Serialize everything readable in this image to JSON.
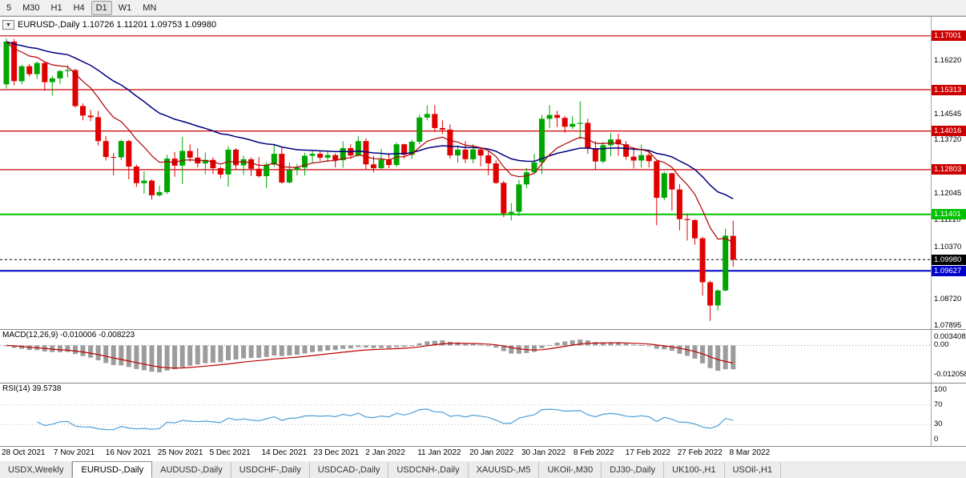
{
  "toolbar": {
    "timeframes": [
      "5",
      "M30",
      "H1",
      "H4",
      "D1",
      "W1",
      "MN"
    ],
    "active_timeframe": "D1"
  },
  "chart": {
    "title_text": "EURUSD-,Daily  1.10726 1.11201 1.09753 1.09980"
  },
  "chart_data": {
    "type": "candlestick",
    "symbol": "EURUSD-",
    "period": "Daily",
    "current_bar": {
      "open": 1.10726,
      "high": 1.11201,
      "low": 1.09753,
      "close": 1.0998
    },
    "up_color": "#00a500",
    "down_color": "#e00000",
    "y_axis": {
      "min": 1.078,
      "max": 1.176,
      "ticks": [
        "1.16220",
        "1.14545",
        "1.13720",
        "1.12045",
        "1.11220",
        "1.10370",
        "1.08720",
        "1.07895"
      ]
    },
    "hlines": [
      {
        "value": 1.17001,
        "label": "1.17001",
        "color": "#cc0000",
        "width": 1.2
      },
      {
        "value": 1.15313,
        "label": "1.15313",
        "color": "#cc0000",
        "width": 1.2
      },
      {
        "value": 1.14016,
        "label": "1.14016",
        "color": "#cc0000",
        "width": 1.2
      },
      {
        "value": 1.12803,
        "label": "1.12803",
        "color": "#cc0000",
        "width": 1.2
      },
      {
        "value": 1.11401,
        "label": "1.11401",
        "color": "#00c000",
        "width": 2
      },
      {
        "value": 1.09627,
        "label": "1.09627",
        "color": "#0000c8",
        "width": 2
      }
    ],
    "price_line": {
      "value": 1.0998,
      "label": "1.09980",
      "color": "#000000"
    },
    "moving_averages": [
      {
        "name": "ma-slow",
        "period": 30,
        "color": "#000080",
        "width": 1.5
      },
      {
        "name": "ma-fast",
        "period": 10,
        "color": "#b00000",
        "width": 1.2
      }
    ],
    "candles": [
      [
        1.1548,
        1.1692,
        1.1535,
        1.1682
      ],
      [
        1.1682,
        1.169,
        1.1545,
        1.1558
      ],
      [
        1.1558,
        1.1609,
        1.1548,
        1.1605
      ],
      [
        1.1605,
        1.1612,
        1.1573,
        1.158
      ],
      [
        1.158,
        1.162,
        1.1565,
        1.1615
      ],
      [
        1.1615,
        1.1618,
        1.1528,
        1.1555
      ],
      [
        1.1555,
        1.1575,
        1.1513,
        1.1567
      ],
      [
        1.1567,
        1.1593,
        1.155,
        1.159
      ],
      [
        1.159,
        1.1608,
        1.157,
        1.1593
      ],
      [
        1.1593,
        1.1597,
        1.1475,
        1.148
      ],
      [
        1.148,
        1.1488,
        1.1435,
        1.145
      ],
      [
        1.145,
        1.1468,
        1.1432,
        1.1445
      ],
      [
        1.1445,
        1.1464,
        1.1356,
        1.137
      ],
      [
        1.137,
        1.1386,
        1.1309,
        1.132
      ],
      [
        1.132,
        1.1332,
        1.1263,
        1.1319
      ],
      [
        1.1319,
        1.1374,
        1.131,
        1.137
      ],
      [
        1.137,
        1.1374,
        1.125,
        1.129
      ],
      [
        1.129,
        1.1296,
        1.1226,
        1.1238
      ],
      [
        1.1238,
        1.1275,
        1.1205,
        1.1246
      ],
      [
        1.1246,
        1.125,
        1.1186,
        1.12
      ],
      [
        1.12,
        1.123,
        1.1196,
        1.121
      ],
      [
        1.121,
        1.1327,
        1.1204,
        1.1315
      ],
      [
        1.1315,
        1.1336,
        1.1258,
        1.1293
      ],
      [
        1.1293,
        1.1383,
        1.1235,
        1.1339
      ],
      [
        1.1339,
        1.136,
        1.1305,
        1.1318
      ],
      [
        1.1318,
        1.1348,
        1.1287,
        1.13
      ],
      [
        1.13,
        1.1334,
        1.1266,
        1.1311
      ],
      [
        1.1311,
        1.1319,
        1.1267,
        1.1285
      ],
      [
        1.1285,
        1.129,
        1.1253,
        1.1265
      ],
      [
        1.1265,
        1.1354,
        1.1227,
        1.1343
      ],
      [
        1.1343,
        1.1348,
        1.128,
        1.1294
      ],
      [
        1.1294,
        1.1324,
        1.1264,
        1.1313
      ],
      [
        1.1313,
        1.1319,
        1.126,
        1.1283
      ],
      [
        1.1283,
        1.132,
        1.1255,
        1.126
      ],
      [
        1.126,
        1.1303,
        1.1222,
        1.1296
      ],
      [
        1.1296,
        1.136,
        1.129,
        1.133
      ],
      [
        1.133,
        1.135,
        1.1236,
        1.124
      ],
      [
        1.124,
        1.1303,
        1.1237,
        1.128
      ],
      [
        1.128,
        1.1298,
        1.1262,
        1.1287
      ],
      [
        1.1287,
        1.1333,
        1.1262,
        1.1324
      ],
      [
        1.1324,
        1.1342,
        1.1301,
        1.133
      ],
      [
        1.133,
        1.1338,
        1.1308,
        1.1318
      ],
      [
        1.1318,
        1.1336,
        1.1304,
        1.1326
      ],
      [
        1.1326,
        1.1331,
        1.1287,
        1.131
      ],
      [
        1.131,
        1.1369,
        1.1286,
        1.1348
      ],
      [
        1.1348,
        1.136,
        1.1316,
        1.1325
      ],
      [
        1.1325,
        1.1386,
        1.1321,
        1.137
      ],
      [
        1.137,
        1.1379,
        1.1279,
        1.1297
      ],
      [
        1.1297,
        1.1324,
        1.1272,
        1.1285
      ],
      [
        1.1285,
        1.1346,
        1.128,
        1.1312
      ],
      [
        1.1312,
        1.1332,
        1.1285,
        1.1295
      ],
      [
        1.1295,
        1.1366,
        1.1289,
        1.136
      ],
      [
        1.136,
        1.1362,
        1.1315,
        1.1327
      ],
      [
        1.1327,
        1.1374,
        1.1314,
        1.1368
      ],
      [
        1.1368,
        1.1453,
        1.136,
        1.1444
      ],
      [
        1.1444,
        1.1482,
        1.1435,
        1.1455
      ],
      [
        1.1455,
        1.1483,
        1.1398,
        1.1411
      ],
      [
        1.1411,
        1.1435,
        1.1392,
        1.1406
      ],
      [
        1.1406,
        1.1422,
        1.1315,
        1.1325
      ],
      [
        1.1325,
        1.1357,
        1.1302,
        1.1343
      ],
      [
        1.1343,
        1.137,
        1.1301,
        1.1313
      ],
      [
        1.1313,
        1.136,
        1.13,
        1.1344
      ],
      [
        1.1344,
        1.1349,
        1.1291,
        1.1325
      ],
      [
        1.1325,
        1.134,
        1.1263,
        1.13
      ],
      [
        1.13,
        1.131,
        1.1235,
        1.1239
      ],
      [
        1.1239,
        1.1245,
        1.1131,
        1.1143
      ],
      [
        1.1143,
        1.1175,
        1.1121,
        1.1148
      ],
      [
        1.1148,
        1.1248,
        1.1135,
        1.1234
      ],
      [
        1.1234,
        1.1285,
        1.1222,
        1.1272
      ],
      [
        1.1272,
        1.133,
        1.1266,
        1.1303
      ],
      [
        1.1303,
        1.1452,
        1.1267,
        1.144
      ],
      [
        1.144,
        1.1483,
        1.1411,
        1.1452
      ],
      [
        1.1452,
        1.1465,
        1.1414,
        1.1443
      ],
      [
        1.1443,
        1.1449,
        1.1396,
        1.1415
      ],
      [
        1.1415,
        1.1448,
        1.1408,
        1.1424
      ],
      [
        1.1424,
        1.1495,
        1.1375,
        1.1427
      ],
      [
        1.1427,
        1.144,
        1.133,
        1.1348
      ],
      [
        1.1348,
        1.1369,
        1.1279,
        1.1306
      ],
      [
        1.1306,
        1.1368,
        1.13,
        1.1357
      ],
      [
        1.1357,
        1.1395,
        1.1322,
        1.1375
      ],
      [
        1.1375,
        1.1393,
        1.1324,
        1.136
      ],
      [
        1.136,
        1.137,
        1.1312,
        1.1321
      ],
      [
        1.1321,
        1.1351,
        1.1284,
        1.1309
      ],
      [
        1.1309,
        1.1359,
        1.1286,
        1.1326
      ],
      [
        1.1326,
        1.1342,
        1.1287,
        1.1307
      ],
      [
        1.1307,
        1.131,
        1.1106,
        1.1192
      ],
      [
        1.1192,
        1.1274,
        1.1184,
        1.1269
      ],
      [
        1.1269,
        1.127,
        1.1152,
        1.1218
      ],
      [
        1.1218,
        1.1235,
        1.109,
        1.1125
      ],
      [
        1.1125,
        1.1142,
        1.1058,
        1.1122
      ],
      [
        1.1122,
        1.1125,
        1.1045,
        1.1065
      ],
      [
        1.1065,
        1.107,
        1.0885,
        1.0927
      ],
      [
        1.0927,
        1.0932,
        1.0806,
        1.0854
      ],
      [
        1.0854,
        1.0905,
        1.0838,
        1.0901
      ],
      [
        1.0901,
        1.1095,
        1.0898,
        1.1073
      ],
      [
        1.10726,
        1.11201,
        1.09753,
        1.0998
      ]
    ],
    "indicators": {
      "macd": {
        "label": "MACD(12,26,9) -0.010006 -0.008223",
        "fast": 12,
        "slow": 26,
        "signal": 9,
        "value": -0.010006,
        "signal_value": -0.008223,
        "histogram_color": "#9c9c9c",
        "signal_color": "#c00000",
        "ticks": [
          {
            "value": 0.003408,
            "label": "0.003408"
          },
          {
            "value": 0.0,
            "label": "0.00"
          },
          {
            "value": -0.012058,
            "label": "-0.012058"
          }
        ],
        "range": {
          "top": 0.0064,
          "bottom": -0.0157
        }
      },
      "rsi": {
        "label": "RSI(14) 39.5738",
        "period": 14,
        "value": 39.5738,
        "line_color": "#4f9fd8",
        "levels": [
          70,
          30
        ],
        "ticks": [
          {
            "value": 100,
            "label": "100"
          },
          {
            "value": 70,
            "label": "70"
          },
          {
            "value": 30,
            "label": "30"
          },
          {
            "value": 0,
            "label": "0"
          }
        ]
      }
    }
  },
  "time_axis": {
    "labels": [
      "28 Oct 2021",
      "7 Nov 2021",
      "16 Nov 2021",
      "25 Nov 2021",
      "5 Dec 2021",
      "14 Dec 2021",
      "23 Dec 2021",
      "2 Jan 2022",
      "11 Jan 2022",
      "20 Jan 2022",
      "30 Jan 2022",
      "8 Feb 2022",
      "17 Feb 2022",
      "27 Feb 2022",
      "8 Mar 2022"
    ]
  },
  "tabs": {
    "items": [
      {
        "label": "USDX,Weekly",
        "active": false
      },
      {
        "label": "EURUSD-,Daily",
        "active": true
      },
      {
        "label": "AUDUSD-,Daily",
        "active": false
      },
      {
        "label": "USDCHF-,Daily",
        "active": false
      },
      {
        "label": "USDCAD-,Daily",
        "active": false
      },
      {
        "label": "USDCNH-,Daily",
        "active": false
      },
      {
        "label": "XAUUSD-,M5",
        "active": false
      },
      {
        "label": "UKOil-,M30",
        "active": false
      },
      {
        "label": "DJ30-,Daily",
        "active": false
      },
      {
        "label": "UK100-,H1",
        "active": false
      },
      {
        "label": "USOil-,H1",
        "active": false
      }
    ]
  }
}
